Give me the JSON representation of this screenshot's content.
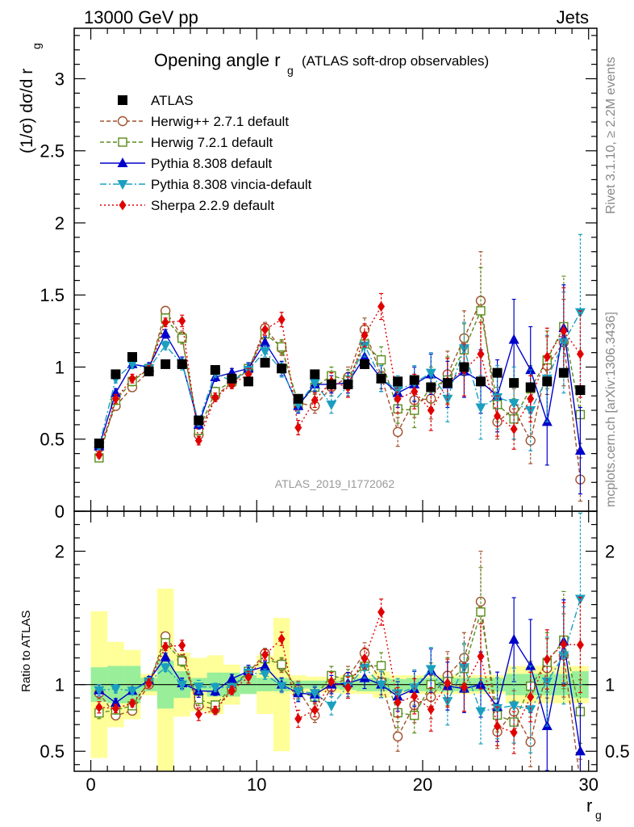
{
  "header": {
    "left": "13000 GeV pp",
    "right": "Jets",
    "title_main": "Opening angle r",
    "title_sub": "g",
    "title_extra": "(ATLAS soft-drop observables)",
    "analysis_id": "ATLAS_2019_I1772062",
    "side_top": "Rivet 3.1.10, ≥ 2.2M events",
    "side_bottom": "mcplots.cern.ch [arXiv:1306.3436]"
  },
  "axes": {
    "ylabel_main": "(1/σ) dσ/d r",
    "ylabel_main_sub": "g",
    "ylabel_ratio": "Ratio to ATLAS",
    "xlabel": "r",
    "xlabel_sub": "g",
    "xlim": [
      -1,
      30.5
    ],
    "main_ylim": [
      0,
      3.35
    ],
    "main_yticks": [
      "0",
      "0.5",
      "1",
      "1.5",
      "2",
      "2.5",
      "3"
    ],
    "ratio_ylim": [
      0.35,
      2.3
    ],
    "ratio_yticks": [
      "0.5",
      "1",
      "2"
    ],
    "xticks": [
      "0",
      "10",
      "20",
      "30"
    ]
  },
  "chart_data": {
    "type": "line",
    "x": [
      0.5,
      1.5,
      2.5,
      3.5,
      4.5,
      5.5,
      6.5,
      7.5,
      8.5,
      9.5,
      10.5,
      11.5,
      12.5,
      13.5,
      14.5,
      15.5,
      16.5,
      17.5,
      18.5,
      19.5,
      20.5,
      21.5,
      22.5,
      23.5,
      24.5,
      25.5,
      26.5,
      27.5,
      28.5,
      29.5
    ],
    "series": [
      {
        "name": "ATLAS",
        "color": "#000000",
        "marker": "square-filled",
        "line": "none",
        "values": [
          0.47,
          0.95,
          1.07,
          0.97,
          1.02,
          1.02,
          0.63,
          0.98,
          0.92,
          0.9,
          1.03,
          0.99,
          0.78,
          0.95,
          0.88,
          0.88,
          1.02,
          0.92,
          0.9,
          0.91,
          0.86,
          0.89,
          1.0,
          0.9,
          0.96,
          0.89,
          0.86,
          0.9,
          0.96,
          0.84
        ],
        "band_inner": [
          0.13,
          0.14,
          0.14,
          0.05,
          0.18,
          0.1,
          0.05,
          0.09,
          0.09,
          0.07,
          0.05,
          0.05,
          0.03,
          0.03,
          0.03,
          0.04,
          0.05,
          0.05,
          0.04,
          0.05,
          0.05,
          0.05,
          0.05,
          0.05,
          0.05,
          0.08,
          0.08,
          0.08,
          0.08,
          0.1
        ],
        "band_outer": [
          0.55,
          0.32,
          0.26,
          0.08,
          0.72,
          0.24,
          0.2,
          0.22,
          0.15,
          0.07,
          0.22,
          0.5,
          0.07,
          0.06,
          0.06,
          0.07,
          0.07,
          0.1,
          0.07,
          0.07,
          0.07,
          0.07,
          0.07,
          0.07,
          0.07,
          0.14,
          0.14,
          0.14,
          0.14,
          0.14
        ]
      },
      {
        "name": "Herwig++ 2.7.1 default",
        "color": "#a0522d",
        "marker": "circle-open",
        "line": "dashed",
        "values": [
          0.44,
          0.73,
          0.86,
          0.97,
          1.39,
          1.21,
          0.53,
          0.8,
          0.89,
          0.98,
          1.27,
          1.13,
          0.75,
          0.73,
          0.86,
          0.93,
          1.26,
          0.94,
          0.55,
          0.77,
          0.78,
          0.95,
          1.2,
          1.46,
          0.62,
          0.71,
          0.49,
          1.01,
          1.17,
          0.22
        ],
        "errors": [
          0.02,
          0.03,
          0.03,
          0.03,
          0.03,
          0.04,
          0.03,
          0.03,
          0.03,
          0.04,
          0.04,
          0.05,
          0.05,
          0.05,
          0.06,
          0.07,
          0.08,
          0.09,
          0.1,
          0.12,
          0.14,
          0.16,
          0.19,
          0.34,
          0.12,
          0.14,
          0.16,
          0.2,
          0.3,
          0.15
        ]
      },
      {
        "name": "Herwig 7.2.1 default",
        "color": "#5a8c1a",
        "marker": "square-open",
        "line": "dashed",
        "values": [
          0.37,
          0.77,
          0.9,
          0.99,
          1.34,
          1.2,
          0.56,
          0.83,
          0.9,
          0.99,
          1.23,
          1.14,
          0.74,
          0.86,
          0.94,
          0.91,
          1.16,
          1.05,
          0.71,
          0.7,
          0.86,
          0.91,
          1.12,
          1.39,
          0.74,
          0.64,
          0.85,
          1.05,
          1.28,
          0.67
        ],
        "errors": [
          0.02,
          0.03,
          0.03,
          0.03,
          0.03,
          0.04,
          0.03,
          0.03,
          0.03,
          0.04,
          0.04,
          0.05,
          0.05,
          0.05,
          0.06,
          0.07,
          0.08,
          0.09,
          0.1,
          0.12,
          0.14,
          0.16,
          0.18,
          0.3,
          0.12,
          0.14,
          0.16,
          0.2,
          0.35,
          0.2
        ]
      },
      {
        "name": "Pythia 8.308 default",
        "color": "#0000cc",
        "marker": "triangle-up",
        "line": "solid",
        "values": [
          0.45,
          0.82,
          1.02,
          1.0,
          1.23,
          1.03,
          0.6,
          0.93,
          0.96,
          0.99,
          1.17,
          0.99,
          0.73,
          0.88,
          0.88,
          0.89,
          1.07,
          0.92,
          0.82,
          0.88,
          0.95,
          0.88,
          0.97,
          0.9,
          0.8,
          1.19,
          0.98,
          0.62,
          1.27,
          0.42
        ],
        "errors": [
          0.02,
          0.03,
          0.03,
          0.03,
          0.03,
          0.04,
          0.03,
          0.03,
          0.03,
          0.04,
          0.04,
          0.05,
          0.05,
          0.05,
          0.06,
          0.07,
          0.08,
          0.09,
          0.1,
          0.12,
          0.14,
          0.16,
          0.18,
          0.22,
          0.25,
          0.28,
          0.3,
          0.3,
          0.3,
          0.3
        ]
      },
      {
        "name": "Pythia 8.308 vincia-default",
        "color": "#1a9fbf",
        "marker": "triangle-down",
        "line": "dashdot",
        "values": [
          0.45,
          0.92,
          1.02,
          0.99,
          1.15,
          1.02,
          0.62,
          0.96,
          0.9,
          0.98,
          1.11,
          0.98,
          0.74,
          0.89,
          0.74,
          0.87,
          1.15,
          0.92,
          0.84,
          0.89,
          0.96,
          0.78,
          1.13,
          0.72,
          0.79,
          0.75,
          0.7,
          0.92,
          1.17,
          1.38
        ],
        "errors": [
          0.02,
          0.03,
          0.03,
          0.03,
          0.03,
          0.04,
          0.03,
          0.03,
          0.03,
          0.04,
          0.04,
          0.05,
          0.05,
          0.05,
          0.06,
          0.07,
          0.08,
          0.09,
          0.1,
          0.12,
          0.14,
          0.16,
          0.18,
          0.22,
          0.22,
          0.25,
          0.28,
          0.3,
          0.35,
          0.54
        ]
      },
      {
        "name": "Sherpa 2.2.9 default",
        "color": "#e00000",
        "marker": "diamond",
        "line": "dotted",
        "values": [
          0.39,
          0.78,
          0.92,
          0.98,
          1.31,
          1.32,
          0.49,
          0.79,
          0.88,
          0.95,
          1.26,
          1.33,
          0.58,
          0.77,
          0.9,
          0.86,
          1.22,
          1.42,
          0.78,
          0.83,
          0.7,
          0.9,
          0.98,
          1.09,
          0.66,
          0.57,
          0.78,
          1.07,
          1.25,
          1.09
        ],
        "errors": [
          0.02,
          0.03,
          0.03,
          0.03,
          0.03,
          0.04,
          0.03,
          0.03,
          0.03,
          0.04,
          0.04,
          0.05,
          0.05,
          0.05,
          0.06,
          0.07,
          0.08,
          0.09,
          0.1,
          0.12,
          0.14,
          0.16,
          0.18,
          0.22,
          0.14,
          0.14,
          0.16,
          0.2,
          0.3,
          0.3
        ]
      }
    ]
  }
}
